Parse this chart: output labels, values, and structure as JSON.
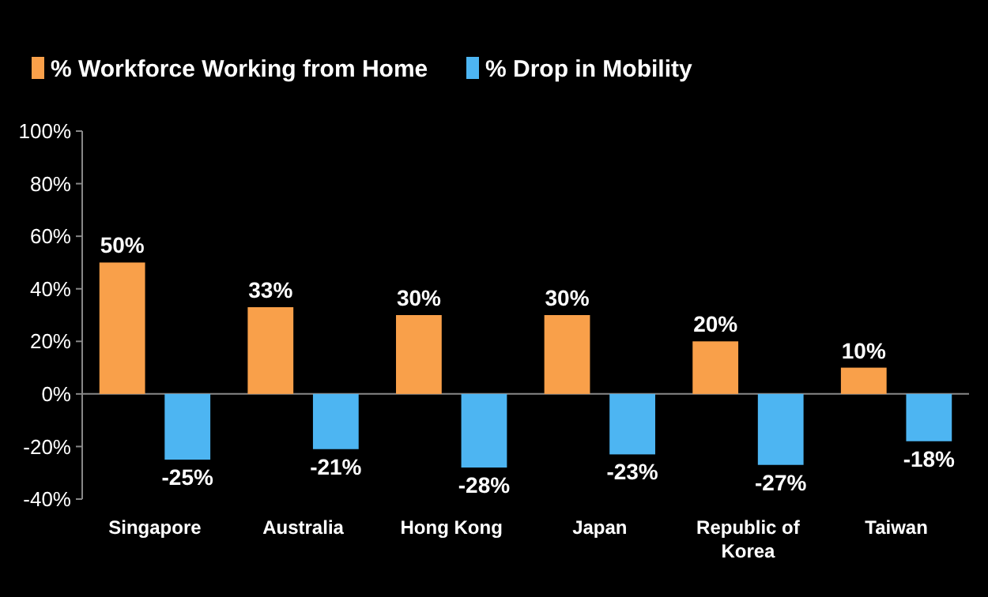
{
  "chart_data": {
    "type": "bar",
    "categories": [
      "Singapore",
      "Australia",
      "Hong Kong",
      "Japan",
      "Republic of Korea",
      "Taiwan"
    ],
    "series": [
      {
        "name": "% Workforce Working from Home",
        "color": "#f9a04a",
        "values": [
          50,
          33,
          30,
          30,
          20,
          10
        ],
        "value_labels": [
          "50%",
          "33%",
          "30%",
          "30%",
          "20%",
          "10%"
        ]
      },
      {
        "name": "% Drop in Mobility",
        "color": "#4db5f2",
        "values": [
          -25,
          -21,
          -28,
          -23,
          -27,
          -18
        ],
        "value_labels": [
          "-25%",
          "-21%",
          "-28%",
          "-23%",
          "-27%",
          "-18%"
        ]
      }
    ],
    "ylim": [
      -40,
      100
    ],
    "yticks": [
      {
        "value": -40,
        "label": "-40%"
      },
      {
        "value": -20,
        "label": "-20%"
      },
      {
        "value": 0,
        "label": "0%"
      },
      {
        "value": 20,
        "label": "20%"
      },
      {
        "value": 40,
        "label": "40%"
      },
      {
        "value": 60,
        "label": "60%"
      },
      {
        "value": 80,
        "label": "80%"
      },
      {
        "value": 100,
        "label": "100%"
      }
    ],
    "legend": "top left"
  }
}
